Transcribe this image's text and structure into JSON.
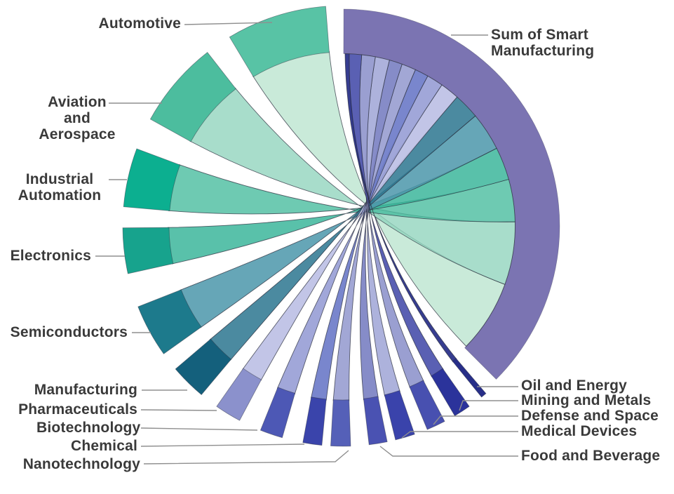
{
  "chart_data": {
    "type": "chord",
    "description": "Radial chord diagram linking a hub arc to industry arcs; arc spans (degrees clockwise from 12 o'clock) encode each industry's share",
    "background": "#ffffff",
    "outline_color": "#2e3140",
    "leader_color": "#8f8f8f",
    "text_color": "#3a3a3a",
    "hub": {
      "label": "Sum of Smart Manufacturing",
      "color": "#7b74b2",
      "arc_deg": [
        0,
        135
      ]
    },
    "industries": [
      {
        "label": "Automotive",
        "arc_deg": [
          329.0,
          355.5
        ],
        "band_color": "#58c3a5",
        "ribbon_color": "#b4e2ca",
        "ribbon_opacity": 0.72
      },
      {
        "label": "Aviation and Aerospace",
        "arc_deg": [
          299.0,
          322.0
        ],
        "band_color": "#4cbd9e",
        "ribbon_color": "#8fd4bc",
        "ribbon_opacity": 0.78
      },
      {
        "label": "Industrial Automation",
        "arc_deg": [
          275.0,
          290.5
        ],
        "band_color": "#0caf90",
        "ribbon_color": "#4abd9f",
        "ribbon_opacity": 0.8
      },
      {
        "label": "Electronics",
        "arc_deg": [
          257.5,
          269.5
        ],
        "band_color": "#17a38d",
        "ribbon_color": "#35b397",
        "ribbon_opacity": 0.82
      },
      {
        "label": "Semiconductors",
        "arc_deg": [
          234.5,
          248.5
        ],
        "band_color": "#1d7a8c",
        "ribbon_color": "#4b97aa",
        "ribbon_opacity": 0.85
      },
      {
        "label": "Manufacturing",
        "arc_deg": [
          220.0,
          229.5
        ],
        "band_color": "#14607c",
        "ribbon_color": "#2b768f",
        "ribbon_opacity": 0.85
      },
      {
        "label": "Pharmaceuticals",
        "arc_deg": [
          208.0,
          215.0
        ],
        "band_color": "#8b91cc",
        "ribbon_color": "#bdc1e5",
        "ribbon_opacity": 0.93
      },
      {
        "label": "Biotechnology",
        "arc_deg": [
          196.0,
          202.0
        ],
        "band_color": "#4d58b5",
        "ribbon_color": "#9aa0d6",
        "ribbon_opacity": 0.93
      },
      {
        "label": "Chemical",
        "arc_deg": [
          185.5,
          190.5
        ],
        "band_color": "#3a44ab",
        "ribbon_color": "#6f7dc9",
        "ribbon_opacity": 0.93
      },
      {
        "label": "Nanotechnology",
        "arc_deg": [
          178.0,
          183.2
        ],
        "band_color": "#5560b8",
        "ribbon_color": "#9ba0d2",
        "ribbon_opacity": 0.93
      },
      {
        "label": "Food and Beverage",
        "arc_deg": [
          168.4,
          173.2
        ],
        "band_color": "#4a52b2",
        "ribbon_color": "#7d83c4",
        "ribbon_opacity": 0.93
      },
      {
        "label": "Medical Devices",
        "arc_deg": [
          161.0,
          166.2
        ],
        "band_color": "#3a43ab",
        "ribbon_color": "#a7acd9",
        "ribbon_opacity": 0.93
      },
      {
        "label": "Defense and Space",
        "arc_deg": [
          152.5,
          157.5
        ],
        "band_color": "#4850b0",
        "ribbon_color": "#9298ce",
        "ribbon_opacity": 0.93
      },
      {
        "label": "Mining and Metals",
        "arc_deg": [
          145.0,
          149.5
        ],
        "band_color": "#2b339b",
        "ribbon_color": "#4d54ad",
        "ribbon_opacity": 0.93
      },
      {
        "label": "Oil and Energy",
        "arc_deg": [
          139.5,
          141.0
        ],
        "band_color": "#272e88",
        "ribbon_color": "#272e88",
        "ribbon_opacity": 0.93
      }
    ]
  }
}
